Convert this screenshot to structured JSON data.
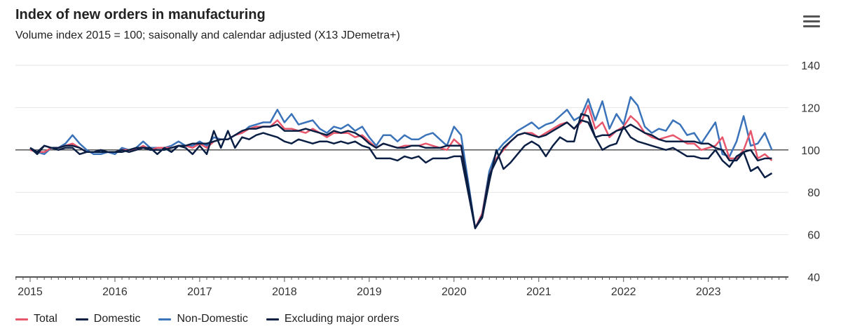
{
  "header": {
    "title": "Index of new orders in manufacturing",
    "subtitle": "Volume index 2015 = 100; saisonally and calendar adjusted (X13 JDemetra+)",
    "menu_icon": "hamburger-menu-icon"
  },
  "chart_data": {
    "type": "line",
    "title": "Index of new orders in manufacturing",
    "subtitle": "Volume index 2015 = 100; saisonally and calendar adjusted (X13 JDemetra+)",
    "x_start": "2015-01",
    "x_end": "2023-10",
    "frequency": "monthly",
    "x_ticks": [
      "2015",
      "2016",
      "2017",
      "2018",
      "2019",
      "2020",
      "2021",
      "2022",
      "2023"
    ],
    "y_ticks": [
      40,
      60,
      80,
      100,
      120,
      140
    ],
    "ylim": [
      40,
      140
    ],
    "y_axis_position": "right",
    "reference_line": 100,
    "grid": true,
    "legend_position": "bottom-left",
    "series": [
      {
        "name": "Total",
        "color": "#e8566c",
        "values": [
          100,
          99,
          99,
          101,
          101,
          102,
          103,
          101,
          99,
          99,
          99,
          99,
          99,
          100,
          100,
          100,
          102,
          100,
          101,
          101,
          101,
          102,
          102,
          101,
          103,
          101,
          104,
          105,
          105,
          107,
          108,
          110,
          111,
          111,
          111,
          114,
          110,
          110,
          109,
          108,
          110,
          108,
          106,
          108,
          108,
          108,
          106,
          107,
          104,
          101,
          103,
          102,
          101,
          102,
          102,
          102,
          103,
          102,
          101,
          100,
          105,
          102,
          82,
          63,
          70,
          88,
          96,
          100,
          104,
          107,
          108,
          108,
          106,
          108,
          110,
          112,
          113,
          110,
          113,
          121,
          110,
          113,
          106,
          109,
          111,
          116,
          113,
          108,
          106,
          105,
          106,
          107,
          105,
          103,
          103,
          100,
          101,
          102,
          106,
          96,
          96,
          100,
          109,
          96,
          98,
          95
        ]
      },
      {
        "name": "Domestic",
        "color": "#0b1f44",
        "values": [
          101,
          99,
          102,
          101,
          101,
          102,
          102,
          101,
          99,
          99,
          99,
          99,
          99,
          100,
          99,
          100,
          101,
          100,
          100,
          100,
          101,
          102,
          102,
          103,
          103,
          103,
          104,
          105,
          105,
          107,
          109,
          110,
          110,
          111,
          111,
          112,
          109,
          109,
          109,
          110,
          109,
          108,
          107,
          109,
          108,
          109,
          108,
          106,
          103,
          101,
          103,
          102,
          101,
          101,
          102,
          102,
          101,
          101,
          101,
          102,
          102,
          102,
          83,
          63,
          69,
          88,
          95,
          101,
          104,
          107,
          108,
          107,
          106,
          107,
          109,
          111,
          113,
          110,
          114,
          113,
          106,
          107,
          107,
          109,
          110,
          112,
          110,
          108,
          107,
          105,
          104,
          104,
          104,
          104,
          104,
          103,
          103,
          101,
          100,
          95,
          95,
          99,
          100,
          95,
          96,
          96
        ]
      },
      {
        "name": "Non-Domestic",
        "color": "#3a73b9",
        "values": [
          101,
          99,
          98,
          101,
          101,
          103,
          107,
          103,
          100,
          98,
          98,
          99,
          98,
          101,
          100,
          101,
          104,
          101,
          101,
          101,
          102,
          104,
          102,
          102,
          104,
          102,
          106,
          105,
          105,
          107,
          108,
          111,
          112,
          113,
          113,
          119,
          113,
          117,
          112,
          113,
          114,
          110,
          108,
          111,
          110,
          112,
          109,
          111,
          106,
          102,
          107,
          107,
          104,
          107,
          105,
          105,
          107,
          108,
          105,
          102,
          111,
          107,
          85,
          63,
          70,
          90,
          99,
          103,
          106,
          109,
          111,
          113,
          110,
          112,
          113,
          116,
          119,
          114,
          116,
          124,
          114,
          123,
          110,
          117,
          112,
          125,
          121,
          111,
          108,
          110,
          109,
          114,
          112,
          107,
          108,
          103,
          108,
          113,
          98,
          97,
          104,
          116,
          102,
          103,
          108,
          100
        ]
      },
      {
        "name": "Excluding major orders",
        "color": "#0b1f44",
        "values": [
          101,
          98,
          102,
          101,
          100,
          101,
          101,
          98,
          99,
          99,
          100,
          99,
          99,
          99,
          100,
          101,
          101,
          101,
          98,
          101,
          99,
          102,
          101,
          98,
          102,
          98,
          109,
          101,
          109,
          101,
          106,
          105,
          107,
          108,
          107,
          106,
          104,
          103,
          105,
          104,
          103,
          104,
          104,
          103,
          104,
          103,
          104,
          102,
          101,
          96,
          96,
          96,
          95,
          97,
          96,
          97,
          94,
          96,
          96,
          96,
          97,
          97,
          80,
          63,
          68,
          85,
          100,
          91,
          94,
          98,
          102,
          104,
          102,
          97,
          102,
          106,
          104,
          104,
          117,
          116,
          106,
          100,
          102,
          103,
          111,
          106,
          104,
          103,
          102,
          101,
          100,
          101,
          99,
          97,
          97,
          96,
          96,
          100,
          95,
          92,
          97,
          99,
          90,
          92,
          87,
          89
        ]
      }
    ]
  }
}
